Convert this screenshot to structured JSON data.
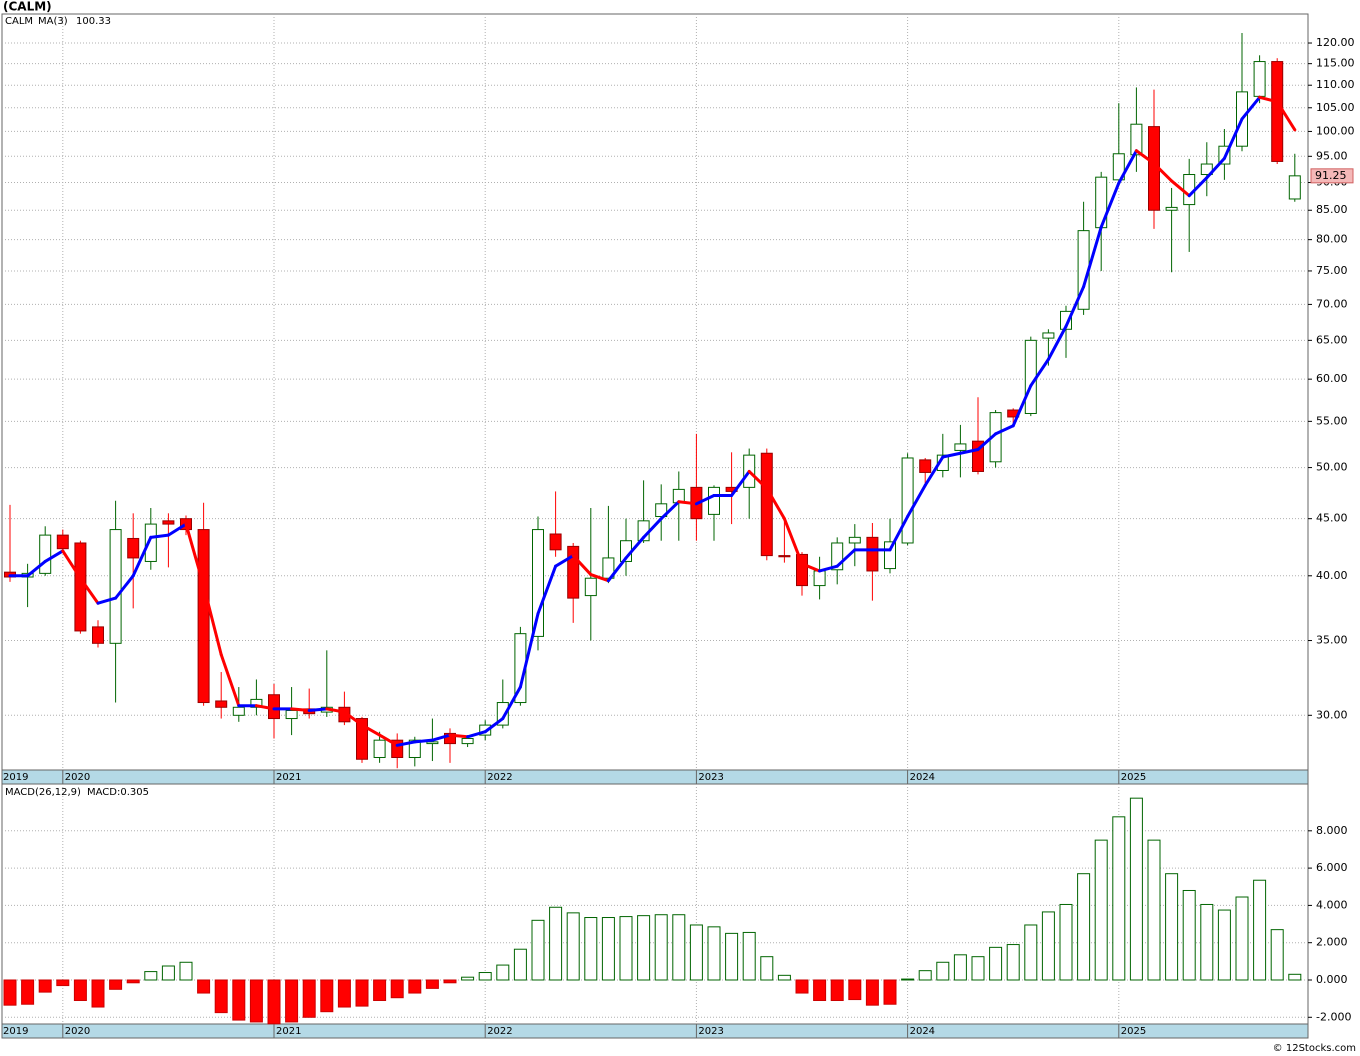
{
  "footer": "© 12Stocks.com",
  "chart_data": [
    {
      "type": "candlestick",
      "title": "(CALM)",
      "symbol": "CALM",
      "ma_name": "MA(3)",
      "log_scale": true,
      "grid": true,
      "up_color": "#006400",
      "down_color": "#ff0000",
      "ma_up_color": "#0000ff",
      "ma_down_color": "#ff0000",
      "symbol_color": "#008000",
      "categories": [
        "2019",
        null,
        null,
        "2020",
        null,
        null,
        null,
        null,
        null,
        null,
        null,
        null,
        null,
        null,
        null,
        "2021",
        null,
        null,
        null,
        null,
        null,
        null,
        null,
        null,
        null,
        null,
        null,
        "2022",
        null,
        null,
        null,
        null,
        null,
        null,
        null,
        null,
        null,
        null,
        null,
        "2023",
        null,
        null,
        null,
        null,
        null,
        null,
        null,
        null,
        null,
        null,
        null,
        "2024",
        null,
        null,
        null,
        null,
        null,
        null,
        null,
        null,
        null,
        null,
        null,
        "2025",
        null,
        null,
        null,
        null,
        null,
        null,
        null,
        null,
        null,
        null
      ],
      "open": [
        40.3,
        39.9,
        40.2,
        43.5,
        42.8,
        36,
        34.8,
        43.2,
        41.2,
        44.8,
        45,
        44,
        30.9,
        30,
        30.5,
        31.3,
        29.8,
        30.4,
        30.2,
        30.5,
        29.8,
        27.5,
        28.5,
        27.5,
        28.3,
        28.9,
        28.3,
        28.8,
        29.4,
        30.8,
        35.3,
        43.6,
        42.5,
        38.4,
        39.8,
        41.2,
        43,
        45.2,
        46.5,
        48,
        45.4,
        48,
        48,
        51.5,
        41.7,
        41.8,
        39.2,
        40.5,
        42.8,
        43.3,
        40.6,
        42.8,
        50.8,
        49.7,
        51.8,
        52.8,
        50.6,
        56.3,
        55.9,
        65.3,
        66.5,
        69.3,
        82,
        90.5,
        95.3,
        101,
        85,
        86,
        91.5,
        93.5,
        97,
        107.5,
        115.5,
        87
      ],
      "high": [
        46.3,
        41,
        44.3,
        44,
        43,
        36.5,
        46.7,
        45.5,
        46,
        45.5,
        45.3,
        46.5,
        32.8,
        31.8,
        32.3,
        32,
        31.8,
        31.7,
        34.3,
        31.5,
        29.9,
        29,
        28.9,
        28.7,
        29.8,
        29.2,
        28.8,
        29.7,
        32.3,
        36,
        45.2,
        47.6,
        42.8,
        46,
        46.2,
        45,
        48.7,
        48.3,
        49.6,
        53.6,
        48.2,
        51.6,
        52,
        52,
        45,
        42,
        41.6,
        43.3,
        44.5,
        44.6,
        45,
        51.5,
        51,
        53.6,
        54.6,
        57.8,
        56.3,
        56.5,
        65.5,
        66.5,
        69.8,
        86.5,
        92,
        106,
        109.5,
        109,
        89,
        94.5,
        97.8,
        100.5,
        122.5,
        117,
        116.3,
        95.5
      ],
      "low": [
        39.5,
        37.5,
        40,
        42,
        35.5,
        34.5,
        30.8,
        37.4,
        40.5,
        40.7,
        43.5,
        30.6,
        29.8,
        29.6,
        30,
        28.6,
        28.8,
        29.8,
        29.9,
        29.4,
        27.2,
        27.2,
        26.9,
        27,
        27.3,
        27.2,
        28.1,
        28.5,
        29.2,
        30.6,
        34.3,
        41.6,
        36.3,
        35,
        39.4,
        40,
        42.8,
        43,
        43,
        43,
        43,
        44.5,
        45,
        41.3,
        41.1,
        38.4,
        38.1,
        39.3,
        40.8,
        38,
        40.2,
        42.6,
        48,
        49,
        49,
        49.3,
        50,
        54.8,
        55.6,
        61.7,
        62.7,
        68.5,
        75,
        90,
        92,
        81.8,
        74.8,
        78,
        87.5,
        90.5,
        96,
        106,
        93.5,
        86.5
      ],
      "close": [
        39.9,
        40.2,
        43.5,
        42.3,
        35.7,
        34.8,
        44,
        41.5,
        44.5,
        44.5,
        44,
        30.8,
        30.5,
        30.5,
        31,
        29.8,
        30.3,
        30.1,
        30.5,
        29.6,
        27.4,
        28.5,
        27.5,
        28.5,
        28.4,
        28.3,
        28.6,
        29.4,
        30.8,
        35.5,
        44,
        42.2,
        38.2,
        39.8,
        41.5,
        43,
        44.8,
        46.4,
        47.8,
        45,
        48,
        47.6,
        51.3,
        41.7,
        41.6,
        39.2,
        40.4,
        42.8,
        43.3,
        40.4,
        42.9,
        51,
        49.5,
        51.3,
        52.5,
        49.6,
        56,
        55.5,
        65,
        66,
        69,
        81.5,
        91,
        95.5,
        101.5,
        85,
        85.5,
        91.5,
        93.5,
        97,
        108.5,
        115.5,
        94,
        91.25
      ],
      "ma": [
        40,
        40,
        41.2,
        42.1,
        39.8,
        37.8,
        38.2,
        40,
        43.3,
        43.5,
        44.5,
        39.2,
        34,
        30.6,
        30.6,
        30.4,
        30.4,
        30.3,
        30.4,
        30.2,
        29.4,
        28.8,
        28.2,
        28.4,
        28.5,
        28.8,
        28.7,
        29,
        29.8,
        31.8,
        37,
        40.8,
        41.7,
        40.1,
        39.6,
        41.5,
        43.3,
        45,
        46.6,
        46.4,
        47.2,
        47.2,
        49.6,
        47.9,
        45,
        41,
        40.4,
        40.8,
        42.2,
        42.2,
        42.2,
        45.2,
        48.2,
        51.1,
        51.5,
        51.9,
        53.6,
        54.5,
        59.2,
        62.5,
        66.9,
        72.6,
        82.1,
        89.9,
        96.1,
        93.6,
        90.3,
        87.6,
        90.9,
        94.6,
        102.6,
        107.3,
        106.3,
        100.33
      ],
      "ylim": [
        26.8,
        127.4
      ],
      "yticks": [
        {
          "value": 30,
          "label": "30.00"
        },
        {
          "value": 35,
          "label": "35.00"
        },
        {
          "value": 40,
          "label": "40.00"
        },
        {
          "value": 45,
          "label": "45.00"
        },
        {
          "value": 50,
          "label": "50.00"
        },
        {
          "value": 55,
          "label": "55.00"
        },
        {
          "value": 60,
          "label": "60.00"
        },
        {
          "value": 65,
          "label": "65.00"
        },
        {
          "value": 70,
          "label": "70.00"
        },
        {
          "value": 75,
          "label": "75.00"
        },
        {
          "value": 80,
          "label": "80.00"
        },
        {
          "value": 85,
          "label": "85.00"
        },
        {
          "value": 90,
          "label": "90.00"
        },
        {
          "value": 95,
          "label": "95.00"
        },
        {
          "value": 100,
          "label": "100.00"
        },
        {
          "value": 105,
          "label": "105.00"
        },
        {
          "value": 110,
          "label": "110.00"
        },
        {
          "value": 115,
          "label": "115.00"
        },
        {
          "value": 120,
          "label": "120.00"
        }
      ]
    },
    {
      "type": "bar",
      "title": "MACD(26,12,9)",
      "legend_value": "MACD:0.305",
      "grid": true,
      "up_color": "#006400",
      "down_color": "#ff0000",
      "legend_color": "#0000cc",
      "categories": [
        "2019",
        null,
        null,
        "2020",
        null,
        null,
        null,
        null,
        null,
        null,
        null,
        null,
        null,
        null,
        null,
        "2021",
        null,
        null,
        null,
        null,
        null,
        null,
        null,
        null,
        null,
        null,
        null,
        "2022",
        null,
        null,
        null,
        null,
        null,
        null,
        null,
        null,
        null,
        null,
        null,
        "2023",
        null,
        null,
        null,
        null,
        null,
        null,
        null,
        null,
        null,
        null,
        null,
        "2024",
        null,
        null,
        null,
        null,
        null,
        null,
        null,
        null,
        null,
        null,
        null,
        "2025",
        null,
        null,
        null,
        null,
        null,
        null,
        null,
        null,
        null,
        null
      ],
      "values": [
        -1.35,
        -1.3,
        -0.65,
        -0.3,
        -1.1,
        -1.45,
        -0.5,
        -0.15,
        0.45,
        0.75,
        0.95,
        -0.7,
        -1.75,
        -2.15,
        -2.25,
        -2.35,
        -2.25,
        -2,
        -1.7,
        -1.45,
        -1.4,
        -1.1,
        -0.95,
        -0.7,
        -0.45,
        -0.15,
        0.15,
        0.4,
        0.8,
        1.65,
        3.2,
        3.9,
        3.6,
        3.35,
        3.35,
        3.4,
        3.45,
        3.5,
        3.5,
        2.95,
        2.85,
        2.5,
        2.55,
        1.25,
        0.25,
        -0.7,
        -1.1,
        -1.1,
        -1.05,
        -1.35,
        -1.3,
        0.05,
        0.5,
        0.95,
        1.35,
        1.25,
        1.75,
        1.9,
        2.95,
        3.65,
        4.05,
        5.7,
        7.5,
        8.75,
        9.75,
        7.5,
        5.7,
        4.8,
        4.05,
        3.75,
        4.45,
        5.35,
        2.7,
        0.305
      ],
      "ylim": [
        -2.36,
        10.51
      ],
      "yticks": [
        {
          "value": -2,
          "label": "-2.000"
        },
        {
          "value": 0,
          "label": "0.000"
        },
        {
          "value": 2,
          "label": "2.000"
        },
        {
          "value": 4,
          "label": "4.000"
        },
        {
          "value": 6,
          "label": "6.000"
        },
        {
          "value": 8,
          "label": "8.000"
        }
      ]
    }
  ]
}
